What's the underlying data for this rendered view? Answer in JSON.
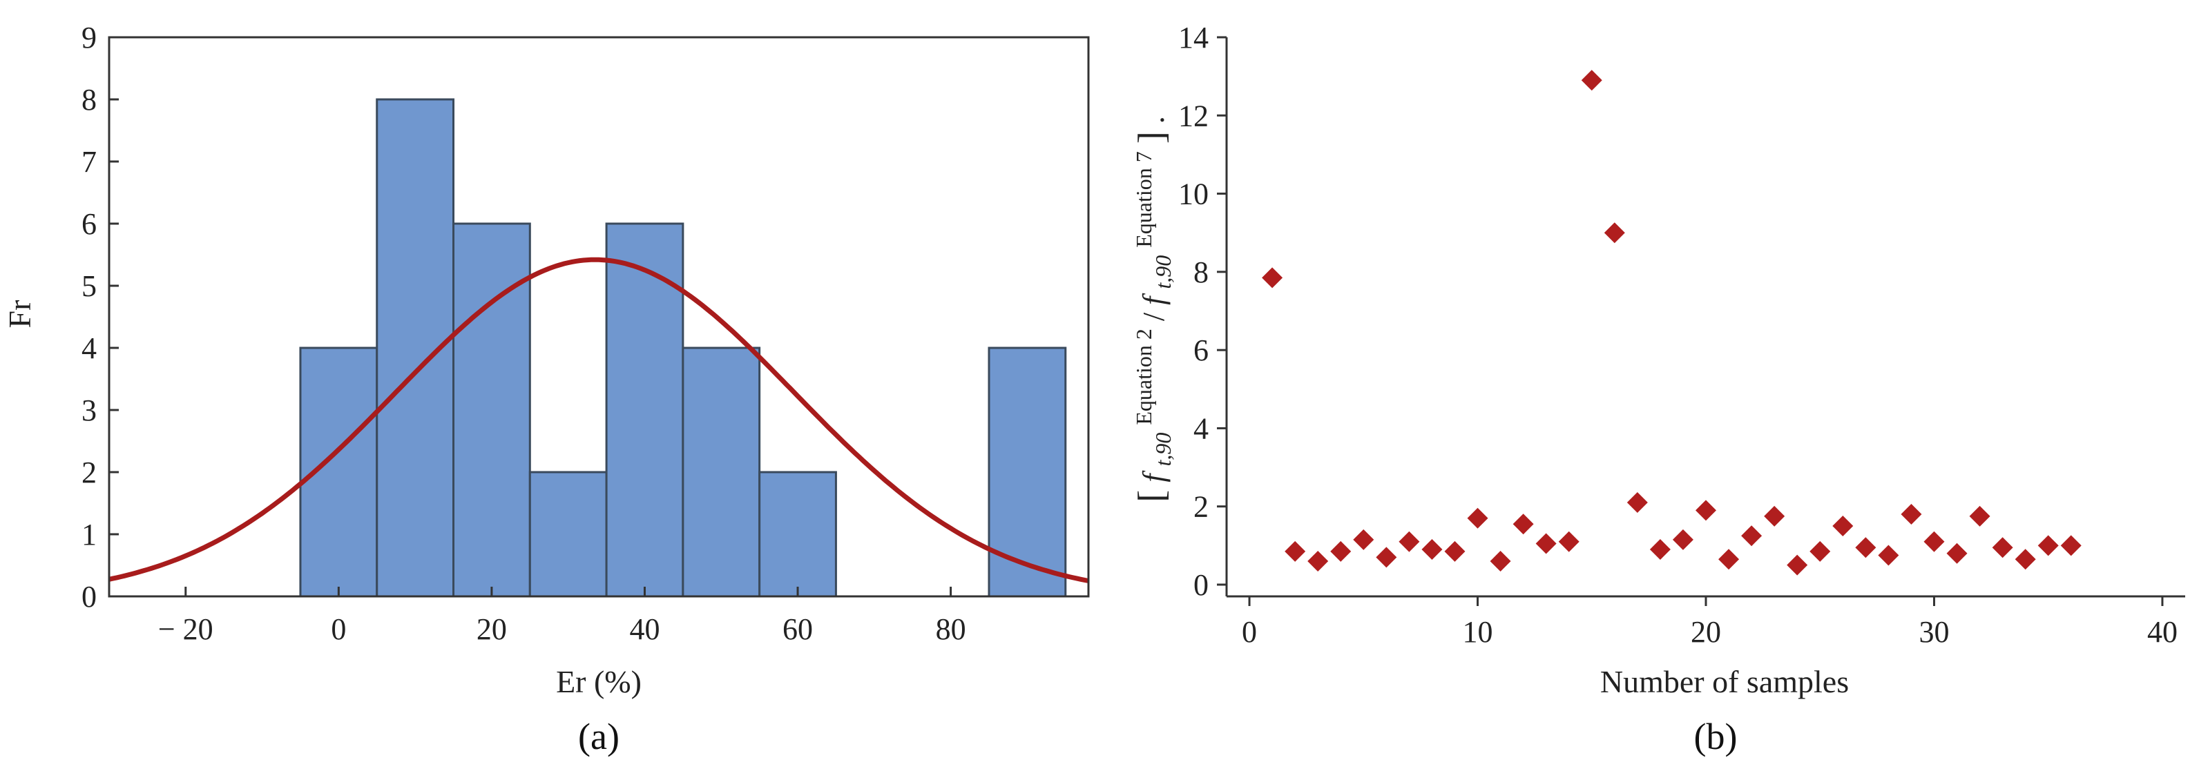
{
  "colors": {
    "bar_fill": "#7097cf",
    "bar_edge": "#3a4a5c",
    "curve": "#a81c1c",
    "marker": "#b01e1e"
  },
  "chart_data": [
    {
      "panel_label": "(a)",
      "type": "bar",
      "subtype": "histogram with fitted normal curve",
      "xlabel": "Er (%)",
      "ylabel": "Fr",
      "xlim": [
        -30,
        98
      ],
      "ylim": [
        0,
        9
      ],
      "xticks": [
        -20,
        0,
        20,
        40,
        60,
        80
      ],
      "xtick_labels": [
        "− 20",
        "0",
        "20",
        "40",
        "60",
        "80"
      ],
      "yticks": [
        0,
        1,
        2,
        3,
        4,
        5,
        6,
        7,
        8,
        9
      ],
      "bins": [
        {
          "from": -5,
          "to": 5,
          "value": 4
        },
        {
          "from": 5,
          "to": 15,
          "value": 8
        },
        {
          "from": 15,
          "to": 25,
          "value": 6
        },
        {
          "from": 25,
          "to": 35,
          "value": 2
        },
        {
          "from": 35,
          "to": 45,
          "value": 6
        },
        {
          "from": 45,
          "to": 55,
          "value": 4
        },
        {
          "from": 55,
          "to": 65,
          "value": 2
        },
        {
          "from": 85,
          "to": 95,
          "value": 4
        }
      ],
      "curve": {
        "type": "normal",
        "mean": 33.5,
        "std": 26,
        "peak": 5.42
      },
      "grid": false
    },
    {
      "panel_label": "(b)",
      "type": "scatter",
      "xlabel": "Number of samples",
      "ylabel": {
        "open_bracket": "[",
        "f": "f",
        "sub": "t,90",
        "sup1": "Equation 2",
        "slash": " / ",
        "sup2": "Equation 7",
        "close_bracket": "]",
        "trail": "."
      },
      "xlim": [
        -1,
        41
      ],
      "ylim": [
        -0.3,
        14
      ],
      "xticks": [
        0,
        10,
        20,
        30,
        40
      ],
      "yticks": [
        0,
        2,
        4,
        6,
        8,
        10,
        12,
        14
      ],
      "marker": "diamond",
      "x": [
        1,
        2,
        3,
        4,
        5,
        6,
        7,
        8,
        9,
        10,
        11,
        12,
        13,
        14,
        15,
        16,
        17,
        18,
        19,
        20,
        21,
        22,
        23,
        24,
        25,
        26,
        27,
        28,
        29,
        30,
        31,
        32,
        33,
        34,
        35,
        36
      ],
      "y": [
        7.85,
        0.85,
        0.6,
        0.85,
        1.15,
        0.7,
        1.1,
        0.9,
        0.85,
        1.7,
        0.6,
        1.55,
        1.05,
        1.1,
        12.9,
        9.0,
        2.1,
        0.9,
        1.15,
        1.9,
        0.65,
        1.25,
        1.75,
        0.5,
        0.85,
        1.5,
        0.95,
        0.75,
        1.8,
        1.1,
        0.8,
        1.75,
        0.95,
        0.65,
        1.0,
        1.0
      ],
      "grid": false
    }
  ]
}
